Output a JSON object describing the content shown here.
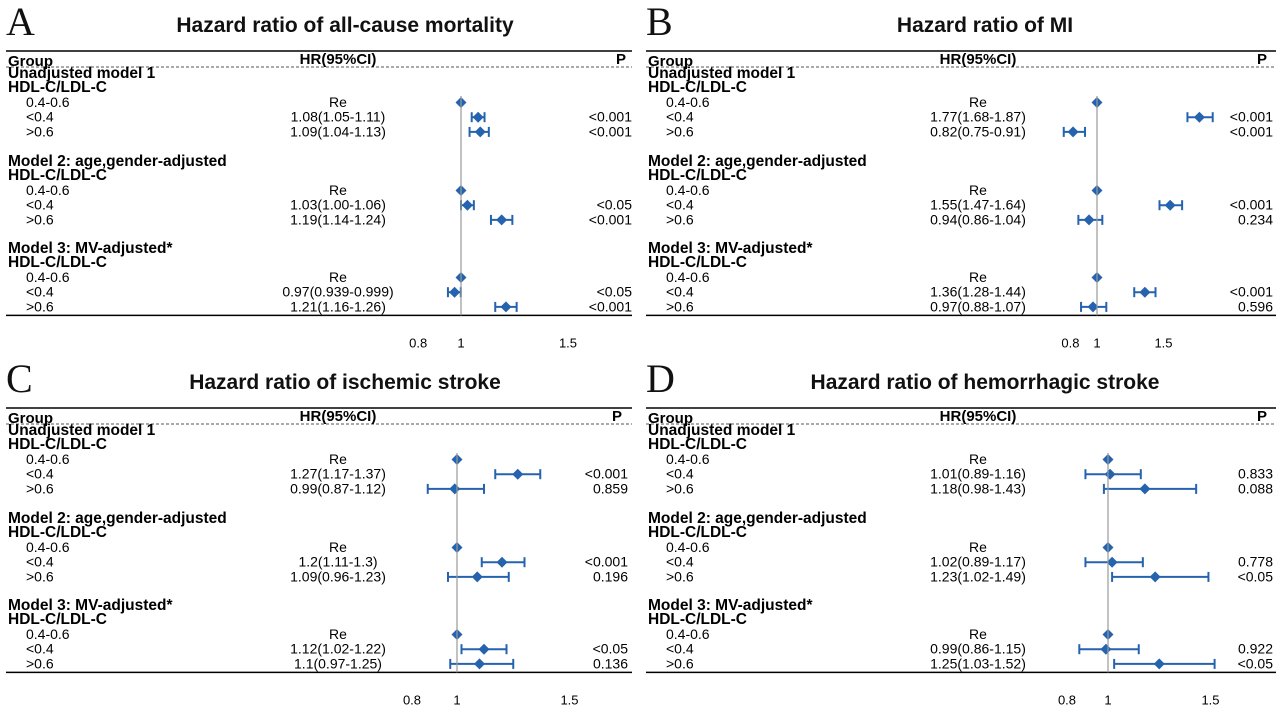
{
  "panels": [
    {
      "letter": "A",
      "title": "Hazard ratio of all-cause mortality",
      "headers": {
        "group": "Group",
        "hr": "HR(95%CI)",
        "p": "P"
      },
      "sections": [
        {
          "model": "Unadjusted model 1",
          "variable": "HDL-C/LDL-C",
          "rows": [
            {
              "group": "0.4-0.6",
              "hr_text": "Re",
              "p": ""
            },
            {
              "group": "<0.4",
              "hr_text": "1.08(1.05-1.11)",
              "p": "<0.001"
            },
            {
              "group": ">0.6",
              "hr_text": "1.09(1.04-1.13)",
              "p": "<0.001"
            }
          ]
        },
        {
          "model": "Model 2: age,gender-adjusted",
          "variable": "HDL-C/LDL-C",
          "rows": [
            {
              "group": "0.4-0.6",
              "hr_text": "Re",
              "p": ""
            },
            {
              "group": "<0.4",
              "hr_text": "1.03(1.00-1.06)",
              "p": "<0.05"
            },
            {
              "group": ">0.6",
              "hr_text": "1.19(1.14-1.24)",
              "p": "<0.001"
            }
          ]
        },
        {
          "model": "Model 3: MV-adjusted*",
          "variable": "HDL-C/LDL-C",
          "rows": [
            {
              "group": "0.4-0.6",
              "hr_text": "Re",
              "p": ""
            },
            {
              "group": "<0.4",
              "hr_text": "0.97(0.939-0.999)",
              "p": "<0.05"
            },
            {
              "group": ">0.6",
              "hr_text": "1.21(1.16-1.26)",
              "p": "<0.001"
            }
          ]
        }
      ],
      "x_ticks": [
        "0.8",
        "1",
        "1.5"
      ]
    },
    {
      "letter": "B",
      "title": "Hazard ratio of MI",
      "headers": {
        "group": "Group",
        "hr": "HR(95%CI)",
        "p": "P"
      },
      "sections": [
        {
          "model": "Unadjusted model 1",
          "variable": "HDL-C/LDL-C",
          "rows": [
            {
              "group": "0.4-0.6",
              "hr_text": "Re",
              "p": ""
            },
            {
              "group": "<0.4",
              "hr_text": "1.77(1.68-1.87)",
              "p": "<0.001"
            },
            {
              "group": ">0.6",
              "hr_text": "0.82(0.75-0.91)",
              "p": "<0.001"
            }
          ]
        },
        {
          "model": "Model 2: age,gender-adjusted",
          "variable": "HDL-C/LDL-C",
          "rows": [
            {
              "group": "0.4-0.6",
              "hr_text": "Re",
              "p": ""
            },
            {
              "group": "<0.4",
              "hr_text": "1.55(1.47-1.64)",
              "p": "<0.001"
            },
            {
              "group": ">0.6",
              "hr_text": "0.94(0.86-1.04)",
              "p": "0.234"
            }
          ]
        },
        {
          "model": "Model 3: MV-adjusted*",
          "variable": "HDL-C/LDL-C",
          "rows": [
            {
              "group": "0.4-0.6",
              "hr_text": "Re",
              "p": ""
            },
            {
              "group": "<0.4",
              "hr_text": "1.36(1.28-1.44)",
              "p": "<0.001"
            },
            {
              "group": ">0.6",
              "hr_text": "0.97(0.88-1.07)",
              "p": "0.596"
            }
          ]
        }
      ],
      "x_ticks": [
        "0.8",
        "1",
        "1.5"
      ]
    },
    {
      "letter": "C",
      "title": "Hazard ratio of ischemic stroke",
      "headers": {
        "group": "Group",
        "hr": "HR(95%CI)",
        "p": "P"
      },
      "sections": [
        {
          "model": "Unadjusted model 1",
          "variable": "HDL-C/LDL-C",
          "rows": [
            {
              "group": "0.4-0.6",
              "hr_text": "Re",
              "p": ""
            },
            {
              "group": "<0.4",
              "hr_text": "1.27(1.17-1.37)",
              "p": "<0.001"
            },
            {
              "group": ">0.6",
              "hr_text": "0.99(0.87-1.12)",
              "p": "0.859"
            }
          ]
        },
        {
          "model": "Model 2: age,gender-adjusted",
          "variable": "HDL-C/LDL-C",
          "rows": [
            {
              "group": "0.4-0.6",
              "hr_text": "Re",
              "p": ""
            },
            {
              "group": "<0.4",
              "hr_text": "1.2(1.11-1.3)",
              "p": "<0.001"
            },
            {
              "group": ">0.6",
              "hr_text": "1.09(0.96-1.23)",
              "p": "0.196"
            }
          ]
        },
        {
          "model": "Model 3: MV-adjusted*",
          "variable": "HDL-C/LDL-C",
          "rows": [
            {
              "group": "0.4-0.6",
              "hr_text": "Re",
              "p": ""
            },
            {
              "group": "<0.4",
              "hr_text": "1.12(1.02-1.22)",
              "p": "<0.05"
            },
            {
              "group": ">0.6",
              "hr_text": "1.1(0.97-1.25)",
              "p": "0.136"
            }
          ]
        }
      ],
      "x_ticks": [
        "0.8",
        "1",
        "1.5"
      ]
    },
    {
      "letter": "D",
      "title": "Hazard ratio of hemorrhagic stroke",
      "headers": {
        "group": "Group",
        "hr": "HR(95%CI)",
        "p": "P"
      },
      "sections": [
        {
          "model": "Unadjusted model 1",
          "variable": "HDL-C/LDL-C",
          "rows": [
            {
              "group": "0.4-0.6",
              "hr_text": "Re",
              "p": ""
            },
            {
              "group": "<0.4",
              "hr_text": "1.01(0.89-1.16)",
              "p": "0.833"
            },
            {
              "group": ">0.6",
              "hr_text": "1.18(0.98-1.43)",
              "p": "0.088"
            }
          ]
        },
        {
          "model": "Model 2: age,gender-adjusted",
          "variable": "HDL-C/LDL-C",
          "rows": [
            {
              "group": "0.4-0.6",
              "hr_text": "Re",
              "p": ""
            },
            {
              "group": "<0.4",
              "hr_text": "1.02(0.89-1.17)",
              "p": "0.778"
            },
            {
              "group": ">0.6",
              "hr_text": "1.23(1.02-1.49)",
              "p": "<0.05"
            }
          ]
        },
        {
          "model": "Model 3: MV-adjusted*",
          "variable": "HDL-C/LDL-C",
          "rows": [
            {
              "group": "0.4-0.6",
              "hr_text": "Re",
              "p": ""
            },
            {
              "group": "<0.4",
              "hr_text": "0.99(0.86-1.15)",
              "p": "0.922"
            },
            {
              "group": ">0.6",
              "hr_text": "1.25(1.03-1.52)",
              "p": "<0.05"
            }
          ]
        }
      ],
      "x_ticks": [
        "0.8",
        "1",
        "1.5"
      ]
    }
  ],
  "chart_data": [
    {
      "type": "scatter",
      "subtype": "forest",
      "title": "Hazard ratio of all-cause mortality",
      "reference_line": 1,
      "x_ticks": [
        0.8,
        1,
        1.5
      ],
      "xlim": [
        0.75,
        1.6
      ],
      "series": [
        {
          "name": "Unadjusted model 1",
          "rows": [
            {
              "group": "0.4-0.6",
              "hr": 1,
              "lo": 1,
              "hi": 1
            },
            {
              "group": "<0.4",
              "hr": 1.08,
              "lo": 1.05,
              "hi": 1.11
            },
            {
              "group": ">0.6",
              "hr": 1.09,
              "lo": 1.04,
              "hi": 1.13
            }
          ]
        },
        {
          "name": "Model 2: age,gender-adjusted",
          "rows": [
            {
              "group": "0.4-0.6",
              "hr": 1,
              "lo": 1,
              "hi": 1
            },
            {
              "group": "<0.4",
              "hr": 1.03,
              "lo": 1.0,
              "hi": 1.06
            },
            {
              "group": ">0.6",
              "hr": 1.19,
              "lo": 1.14,
              "hi": 1.24
            }
          ]
        },
        {
          "name": "Model 3: MV-adjusted*",
          "rows": [
            {
              "group": "0.4-0.6",
              "hr": 1,
              "lo": 1,
              "hi": 1
            },
            {
              "group": "<0.4",
              "hr": 0.97,
              "lo": 0.939,
              "hi": 0.999
            },
            {
              "group": ">0.6",
              "hr": 1.21,
              "lo": 1.16,
              "hi": 1.26
            }
          ]
        }
      ]
    },
    {
      "type": "scatter",
      "subtype": "forest",
      "title": "Hazard ratio of MI",
      "reference_line": 1,
      "x_ticks": [
        0.8,
        1,
        1.5
      ],
      "xlim": [
        0.75,
        2.0
      ],
      "series": [
        {
          "name": "Unadjusted model 1",
          "rows": [
            {
              "group": "0.4-0.6",
              "hr": 1,
              "lo": 1,
              "hi": 1
            },
            {
              "group": "<0.4",
              "hr": 1.77,
              "lo": 1.68,
              "hi": 1.87
            },
            {
              "group": ">0.6",
              "hr": 0.82,
              "lo": 0.75,
              "hi": 0.91
            }
          ]
        },
        {
          "name": "Model 2: age,gender-adjusted",
          "rows": [
            {
              "group": "0.4-0.6",
              "hr": 1,
              "lo": 1,
              "hi": 1
            },
            {
              "group": "<0.4",
              "hr": 1.55,
              "lo": 1.47,
              "hi": 1.64
            },
            {
              "group": ">0.6",
              "hr": 0.94,
              "lo": 0.86,
              "hi": 1.04
            }
          ]
        },
        {
          "name": "Model 3: MV-adjusted*",
          "rows": [
            {
              "group": "0.4-0.6",
              "hr": 1,
              "lo": 1,
              "hi": 1
            },
            {
              "group": "<0.4",
              "hr": 1.36,
              "lo": 1.28,
              "hi": 1.44
            },
            {
              "group": ">0.6",
              "hr": 0.97,
              "lo": 0.88,
              "hi": 1.07
            }
          ]
        }
      ]
    },
    {
      "type": "scatter",
      "subtype": "forest",
      "title": "Hazard ratio of ischemic stroke",
      "reference_line": 1,
      "x_ticks": [
        0.8,
        1,
        1.5
      ],
      "xlim": [
        0.75,
        1.6
      ],
      "series": [
        {
          "name": "Unadjusted model 1",
          "rows": [
            {
              "group": "0.4-0.6",
              "hr": 1,
              "lo": 1,
              "hi": 1
            },
            {
              "group": "<0.4",
              "hr": 1.27,
              "lo": 1.17,
              "hi": 1.37
            },
            {
              "group": ">0.6",
              "hr": 0.99,
              "lo": 0.87,
              "hi": 1.12
            }
          ]
        },
        {
          "name": "Model 2: age,gender-adjusted",
          "rows": [
            {
              "group": "0.4-0.6",
              "hr": 1,
              "lo": 1,
              "hi": 1
            },
            {
              "group": "<0.4",
              "hr": 1.2,
              "lo": 1.11,
              "hi": 1.3
            },
            {
              "group": ">0.6",
              "hr": 1.09,
              "lo": 0.96,
              "hi": 1.23
            }
          ]
        },
        {
          "name": "Model 3: MV-adjusted*",
          "rows": [
            {
              "group": "0.4-0.6",
              "hr": 1,
              "lo": 1,
              "hi": 1
            },
            {
              "group": "<0.4",
              "hr": 1.12,
              "lo": 1.02,
              "hi": 1.22
            },
            {
              "group": ">0.6",
              "hr": 1.1,
              "lo": 0.97,
              "hi": 1.25
            }
          ]
        }
      ]
    },
    {
      "type": "scatter",
      "subtype": "forest",
      "title": "Hazard ratio of hemorrhagic stroke",
      "reference_line": 1,
      "x_ticks": [
        0.8,
        1,
        1.5
      ],
      "xlim": [
        0.75,
        1.6
      ],
      "series": [
        {
          "name": "Unadjusted model 1",
          "rows": [
            {
              "group": "0.4-0.6",
              "hr": 1,
              "lo": 1,
              "hi": 1
            },
            {
              "group": "<0.4",
              "hr": 1.01,
              "lo": 0.89,
              "hi": 1.16
            },
            {
              "group": ">0.6",
              "hr": 1.18,
              "lo": 0.98,
              "hi": 1.43
            }
          ]
        },
        {
          "name": "Model 2: age,gender-adjusted",
          "rows": [
            {
              "group": "0.4-0.6",
              "hr": 1,
              "lo": 1,
              "hi": 1
            },
            {
              "group": "<0.4",
              "hr": 1.02,
              "lo": 0.89,
              "hi": 1.17
            },
            {
              "group": ">0.6",
              "hr": 1.23,
              "lo": 1.02,
              "hi": 1.49
            }
          ]
        },
        {
          "name": "Model 3: MV-adjusted*",
          "rows": [
            {
              "group": "0.4-0.6",
              "hr": 1,
              "lo": 1,
              "hi": 1
            },
            {
              "group": "<0.4",
              "hr": 0.99,
              "lo": 0.86,
              "hi": 1.15
            },
            {
              "group": ">0.6",
              "hr": 1.25,
              "lo": 1.03,
              "hi": 1.52
            }
          ]
        }
      ]
    }
  ],
  "colors": {
    "marker": "#2563ae",
    "text": "#111111",
    "ref_line": "#9a9a9a",
    "rule": "#000000"
  }
}
